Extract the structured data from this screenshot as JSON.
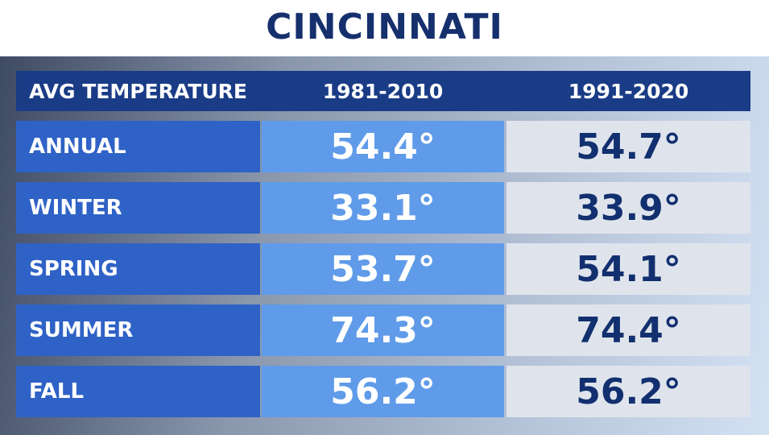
{
  "title": "CINCINNATI",
  "table": {
    "header": [
      "AVG TEMPERATURE",
      "1981-2010",
      "1991-2020"
    ],
    "rows": [
      [
        "ANNUAL",
        "54.4°",
        "54.7°"
      ],
      [
        "WINTER",
        "33.1°",
        "33.9°"
      ],
      [
        "SPRING",
        "53.7°",
        "54.1°"
      ],
      [
        "SUMMER",
        "74.3°",
        "74.4°"
      ],
      [
        "FALL",
        "56.2°",
        "56.2°"
      ]
    ]
  }
}
